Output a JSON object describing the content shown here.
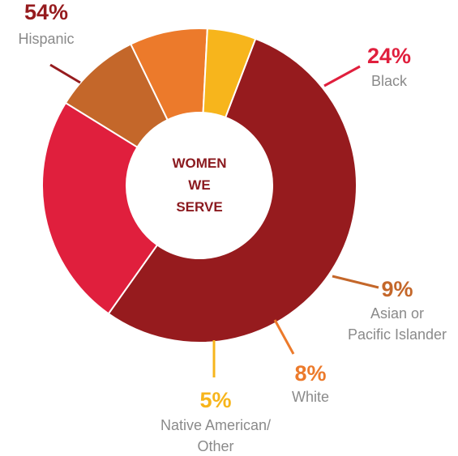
{
  "chart_data": {
    "type": "pie",
    "variant": "donut",
    "center_label": [
      "WOMEN",
      "WE",
      "SERVE"
    ],
    "slices": [
      {
        "name": "Hispanic",
        "value": 54,
        "label": "54%",
        "color": "#961b1e",
        "label_lines": [
          "Hispanic"
        ]
      },
      {
        "name": "Black",
        "value": 24,
        "label": "24%",
        "color": "#e01f3d",
        "label_lines": [
          "Black"
        ]
      },
      {
        "name": "Asian or Pacific Islander",
        "value": 9,
        "label": "9%",
        "color": "#c4672a",
        "label_lines": [
          "Asian or",
          "Pacific Islander"
        ]
      },
      {
        "name": "White",
        "value": 8,
        "label": "8%",
        "color": "#ec7a2b",
        "label_lines": [
          "White"
        ]
      },
      {
        "name": "Native American/ Other",
        "value": 5,
        "label": "5%",
        "color": "#f7b51c",
        "label_lines": [
          "Native American/",
          "Other"
        ]
      }
    ]
  }
}
